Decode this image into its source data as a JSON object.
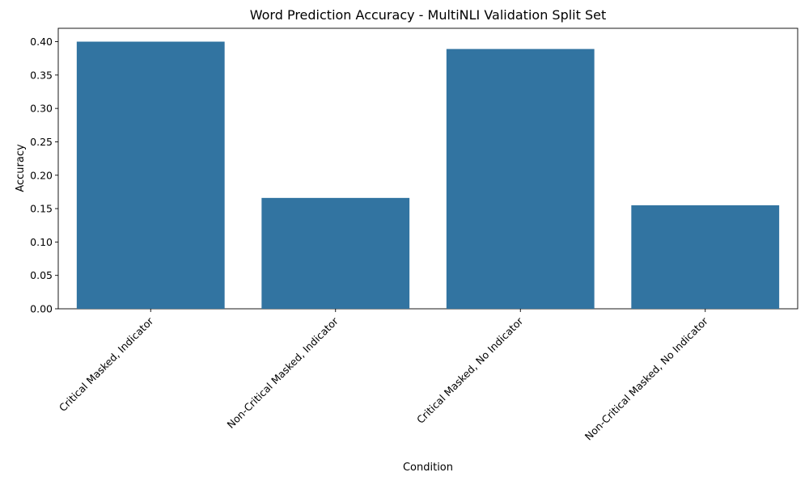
{
  "chart_data": {
    "type": "bar",
    "title": "Word Prediction Accuracy - MultiNLI Validation Split Set",
    "xlabel": "Condition",
    "ylabel": "Accuracy",
    "categories": [
      "Critical Masked, Indicator",
      "Non-Critical Masked, Indicator",
      "Critical Masked, No Indicator",
      "Non-Critical Masked, No Indicator"
    ],
    "values": [
      0.4,
      0.166,
      0.389,
      0.155
    ],
    "ylim": [
      0,
      0.42
    ],
    "yticks": [
      0.0,
      0.05,
      0.1,
      0.15,
      0.2,
      0.25,
      0.3,
      0.35,
      0.4
    ],
    "ytick_labels": [
      "0.00",
      "0.05",
      "0.10",
      "0.15",
      "0.20",
      "0.25",
      "0.30",
      "0.35",
      "0.40"
    ],
    "bar_color": "#3274a1",
    "grid": false,
    "legend": "none"
  }
}
